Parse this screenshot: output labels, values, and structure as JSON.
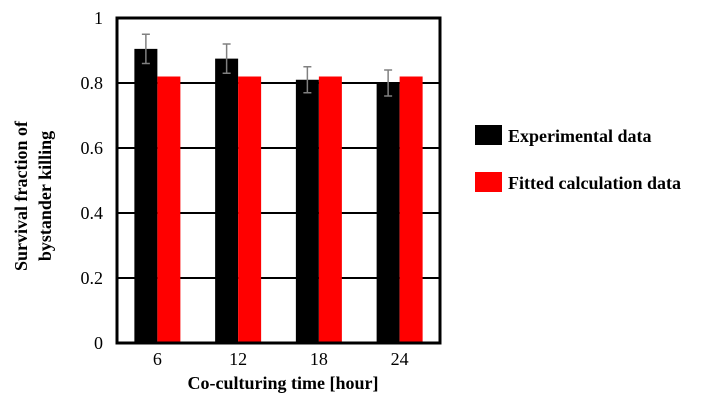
{
  "chart_data": {
    "type": "bar",
    "categories": [
      "6",
      "12",
      "18",
      "24"
    ],
    "xlabel": "Co-culturing time [hour]",
    "ylabel_lines": [
      "Survival fraction of",
      "bystander killing"
    ],
    "ylim": [
      0,
      1
    ],
    "yticks": [
      "0",
      "0.2",
      "0.4",
      "0.6",
      "0.8",
      "1"
    ],
    "grid": true,
    "legend_position": "right",
    "series": [
      {
        "name": "Experimental data",
        "color": "#000000",
        "values": [
          0.905,
          0.875,
          0.81,
          0.8
        ],
        "errors": [
          0.045,
          0.045,
          0.04,
          0.04
        ]
      },
      {
        "name": "Fitted calculation data",
        "color": "#ff0000",
        "values": [
          0.82,
          0.82,
          0.82,
          0.82
        ]
      }
    ]
  }
}
